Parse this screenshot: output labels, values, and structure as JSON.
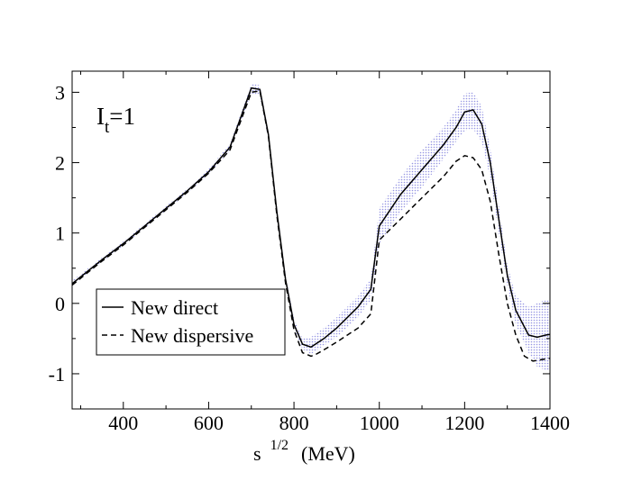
{
  "chart_data": {
    "type": "line",
    "title": "",
    "annotation": {
      "main": "I",
      "subscript": "t",
      "suffix": "=1"
    },
    "xlabel": {
      "main": "s",
      "superscript": "1/2",
      "units": "(MeV)"
    },
    "ylabel": "",
    "xlim": [
      280,
      1400
    ],
    "ylim": [
      -1.5,
      3.3
    ],
    "xticks": [
      400,
      600,
      800,
      1000,
      1200,
      1400
    ],
    "xtick_labels": [
      "400",
      "600",
      "800",
      "1000",
      "1200",
      "1400"
    ],
    "yticks": [
      -1,
      0,
      1,
      2,
      3
    ],
    "ytick_labels": [
      "-1",
      "0",
      "1",
      "2",
      "3"
    ],
    "colors": {
      "band": "#8a8ae0",
      "line": "#000000"
    },
    "legend": {
      "placement": "bottom-left"
    },
    "series": [
      {
        "name": "New direct",
        "style": "solid",
        "x": [
          280,
          350,
          400,
          450,
          500,
          550,
          600,
          650,
          700,
          720,
          740,
          760,
          780,
          800,
          820,
          840,
          870,
          900,
          950,
          980,
          1000,
          1050,
          1100,
          1150,
          1180,
          1200,
          1220,
          1240,
          1260,
          1280,
          1300,
          1320,
          1350,
          1370,
          1390,
          1400
        ],
        "y": [
          0.28,
          0.62,
          0.85,
          1.1,
          1.35,
          1.6,
          1.87,
          2.22,
          3.06,
          3.04,
          2.4,
          1.3,
          0.35,
          -0.3,
          -0.58,
          -0.62,
          -0.5,
          -0.35,
          -0.05,
          0.2,
          1.1,
          1.55,
          1.9,
          2.25,
          2.5,
          2.72,
          2.75,
          2.55,
          2.0,
          1.2,
          0.4,
          -0.1,
          -0.45,
          -0.48,
          -0.45,
          -0.44
        ],
        "band": {
          "x": [
            280,
            350,
            400,
            450,
            500,
            550,
            600,
            650,
            700,
            720,
            740,
            760,
            780,
            800,
            820,
            840,
            870,
            900,
            950,
            980,
            1000,
            1050,
            1100,
            1150,
            1180,
            1200,
            1220,
            1240,
            1260,
            1280,
            1300,
            1320,
            1350,
            1370,
            1390,
            1400
          ],
          "lower": [
            0.25,
            0.59,
            0.82,
            1.07,
            1.32,
            1.57,
            1.83,
            2.17,
            2.98,
            2.96,
            2.32,
            1.22,
            0.28,
            -0.38,
            -0.65,
            -0.72,
            -0.6,
            -0.48,
            -0.2,
            0.05,
            0.85,
            1.3,
            1.65,
            2.05,
            2.3,
            2.45,
            2.48,
            2.3,
            1.78,
            1.0,
            0.25,
            -0.3,
            -0.7,
            -0.9,
            -0.95,
            -0.95
          ],
          "upper": [
            0.32,
            0.65,
            0.88,
            1.13,
            1.38,
            1.63,
            1.91,
            2.27,
            3.12,
            3.1,
            2.46,
            1.38,
            0.42,
            -0.22,
            -0.5,
            -0.48,
            -0.35,
            -0.2,
            0.1,
            0.35,
            1.35,
            1.8,
            2.18,
            2.5,
            2.75,
            2.98,
            3.0,
            2.8,
            2.2,
            1.4,
            0.55,
            0.1,
            -0.05,
            0.0,
            0.05,
            0.05
          ]
        }
      },
      {
        "name": "New dispersive",
        "style": "dashed",
        "x": [
          280,
          350,
          400,
          450,
          500,
          550,
          600,
          650,
          700,
          720,
          740,
          760,
          780,
          800,
          820,
          840,
          850,
          870,
          900,
          950,
          980,
          1000,
          1050,
          1100,
          1150,
          1180,
          1200,
          1220,
          1240,
          1260,
          1280,
          1300,
          1320,
          1340,
          1360,
          1380,
          1400
        ],
        "y": [
          0.26,
          0.6,
          0.83,
          1.08,
          1.33,
          1.58,
          1.85,
          2.18,
          3.0,
          3.02,
          2.38,
          1.25,
          0.3,
          -0.38,
          -0.7,
          -0.75,
          -0.73,
          -0.66,
          -0.55,
          -0.35,
          -0.15,
          0.9,
          1.2,
          1.5,
          1.8,
          2.02,
          2.1,
          2.07,
          1.9,
          1.45,
          0.7,
          0.0,
          -0.45,
          -0.75,
          -0.82,
          -0.8,
          -0.78
        ]
      }
    ]
  }
}
